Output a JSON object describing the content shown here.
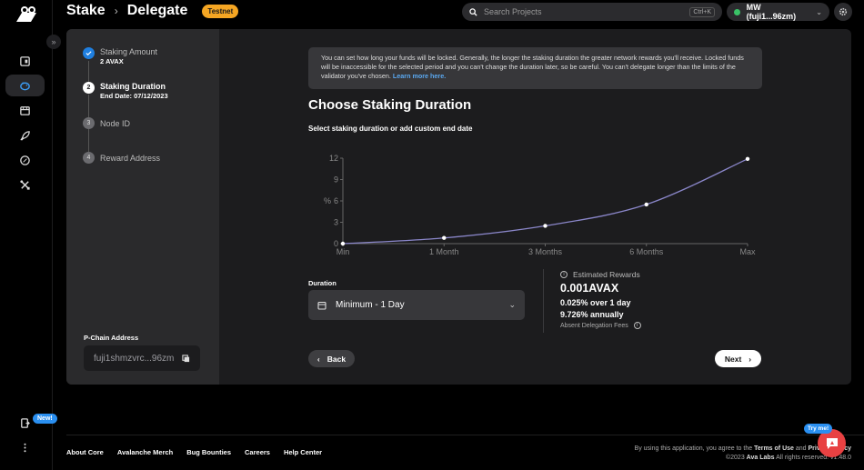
{
  "header": {
    "breadcrumb": [
      "Stake",
      "Delegate"
    ],
    "network_badge": "Testnet",
    "search_placeholder": "Search Projects",
    "search_shortcut": "Ctrl+K",
    "account_label": "MW (fuji1...96zm)",
    "account_status_color": "#3ac267"
  },
  "rail": {
    "items": [
      {
        "icon": "wallet-icon",
        "active": false
      },
      {
        "icon": "piggy-bank-icon",
        "active": true
      },
      {
        "icon": "store-icon",
        "active": false
      },
      {
        "icon": "rocket-icon",
        "active": false
      },
      {
        "icon": "compass-icon",
        "active": false
      },
      {
        "icon": "tools-icon",
        "active": false
      }
    ],
    "new_badge": "New!"
  },
  "steps": [
    {
      "number": "1",
      "title": "Staking Amount",
      "sub": "2 AVAX",
      "state": "done"
    },
    {
      "number": "2",
      "title": "Staking Duration",
      "sub": "End Date: 07/12/2023",
      "state": "current"
    },
    {
      "number": "3",
      "title": "Node ID",
      "sub": "",
      "state": "todo"
    },
    {
      "number": "4",
      "title": "Reward Address",
      "sub": "",
      "state": "todo"
    }
  ],
  "pchain": {
    "label": "P-Chain Address",
    "value": "fuji1shmzvrc...96zm"
  },
  "info": {
    "text": "You can set how long your funds will be locked. Generally, the longer the staking duration the greater network rewards you'll receive. Locked funds will be inaccessible for the selected period and you can't change the duration later, so be careful. You can't delegate longer than the limits of the validator you've chosen.",
    "link": "Learn more here."
  },
  "main": {
    "title": "Choose Staking Duration",
    "subtitle": "Select staking duration or add custom end date"
  },
  "chart_data": {
    "type": "line",
    "title": "",
    "xlabel": "",
    "ylabel": "%",
    "categories": [
      "Min",
      "1 Month",
      "3 Months",
      "6 Months",
      "Max"
    ],
    "values": [
      0,
      0.8,
      2.5,
      5.5,
      11.9
    ],
    "yticks": [
      0,
      3,
      6,
      9,
      12
    ],
    "ylim": [
      0,
      12
    ],
    "grid": false,
    "legend": "none",
    "line_color": "#8a86c9"
  },
  "duration": {
    "label": "Duration",
    "selected": "Minimum - 1 Day"
  },
  "rewards": {
    "label": "Estimated Rewards",
    "amount": "0.001AVAX",
    "period": "0.025% over 1 day",
    "annual": "9.726% annually",
    "note": "Absent Delegation Fees"
  },
  "buttons": {
    "back": "Back",
    "next": "Next"
  },
  "footer": {
    "links": [
      "About Core",
      "Avalanche Merch",
      "Bug Bounties",
      "Careers",
      "Help Center"
    ],
    "legal_prefix": "By using this application, you agree to the",
    "terms": "Terms of Use",
    "and": "and",
    "privacy": "Privacy Policy",
    "copyright": "©2023",
    "company": "Ava Labs",
    "rights": "All rights reserved.",
    "version": "v1.48.0",
    "try_badge": "Try me!"
  }
}
